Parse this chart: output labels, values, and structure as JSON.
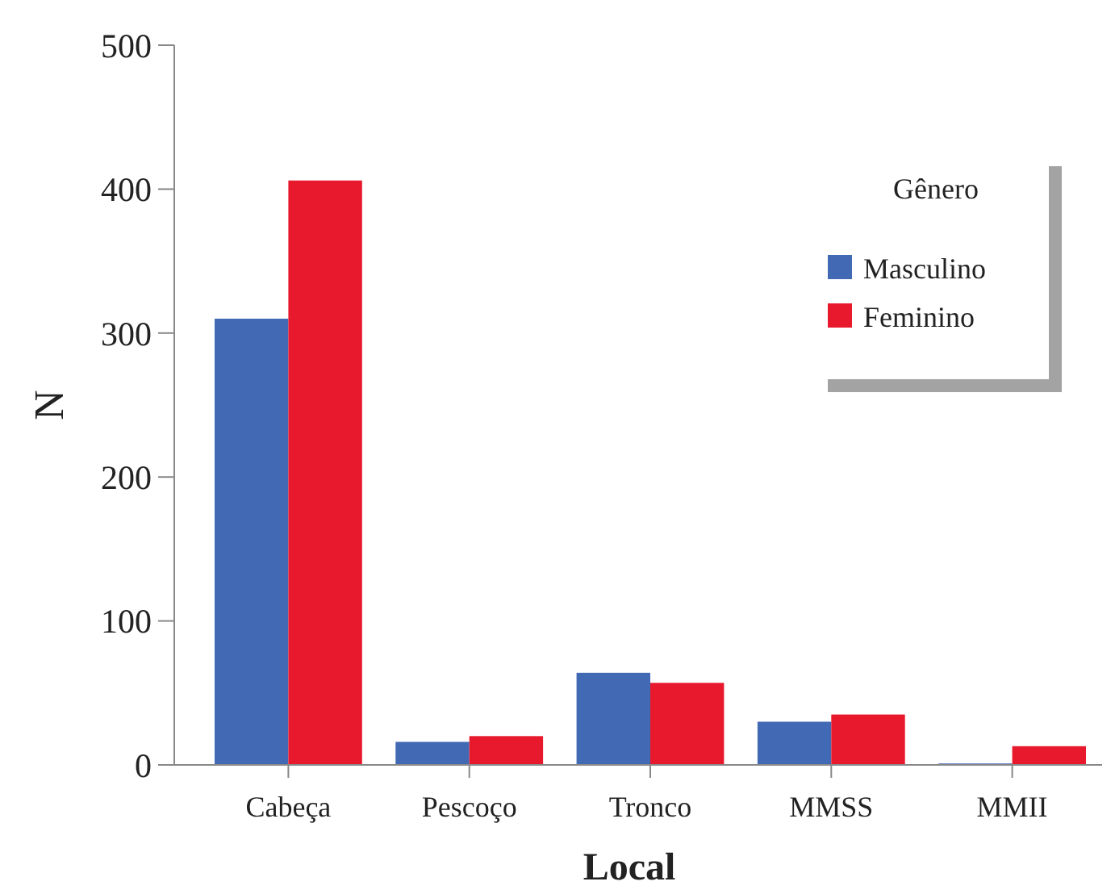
{
  "chart_data": {
    "type": "bar",
    "xlabel": "Local",
    "ylabel": "N",
    "legend_title": "Gênero",
    "categories": [
      "Cabeça",
      "Pescoço",
      "Tronco",
      "MMSS",
      "MMII"
    ],
    "series": [
      {
        "name": "Masculino",
        "color": "#4169b4",
        "values": [
          310,
          16,
          64,
          30,
          1
        ]
      },
      {
        "name": "Feminino",
        "color": "#e8192c",
        "values": [
          406,
          20,
          57,
          35,
          13
        ]
      }
    ],
    "ylim": [
      0,
      500
    ],
    "yticks": [
      0,
      100,
      200,
      300,
      400,
      500
    ],
    "legend": "top right"
  }
}
